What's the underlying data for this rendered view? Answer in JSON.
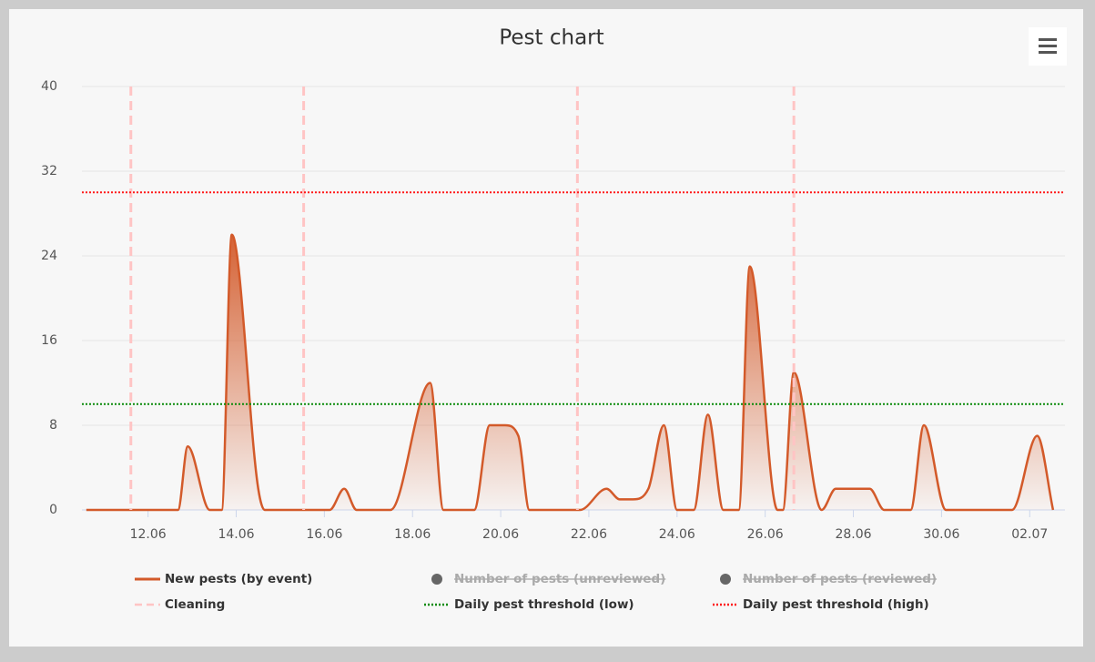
{
  "chart_data": {
    "type": "areaspline",
    "title": "Pest chart",
    "xlim": [
      10.5,
      32.8
    ],
    "xticks": [
      {
        "value": 12,
        "label": "12.06"
      },
      {
        "value": 14,
        "label": "14.06"
      },
      {
        "value": 16,
        "label": "16.06"
      },
      {
        "value": 18,
        "label": "18.06"
      },
      {
        "value": 20,
        "label": "20.06"
      },
      {
        "value": 22,
        "label": "22.06"
      },
      {
        "value": 24,
        "label": "24.06"
      },
      {
        "value": 26,
        "label": "26.06"
      },
      {
        "value": 28,
        "label": "28.06"
      },
      {
        "value": 30,
        "label": "30.06"
      },
      {
        "value": 32,
        "label": "02.07"
      }
    ],
    "ylim": [
      0,
      40
    ],
    "yticks": [
      0,
      8,
      16,
      24,
      32,
      40
    ],
    "grid": true,
    "series": [
      {
        "name": "New pests (by event)",
        "type": "areaspline",
        "color": "#d35a2a",
        "x": [
          10.6,
          12.68,
          12.9,
          13.4,
          13.67,
          13.9,
          14.5,
          14.65,
          16.12,
          16.45,
          16.73,
          17.5,
          18.4,
          18.7,
          19.4,
          19.75,
          20.1,
          20.4,
          20.65,
          21.8,
          22.4,
          22.7,
          23.0,
          23.35,
          23.7,
          24.0,
          24.38,
          24.7,
          25.05,
          25.4,
          25.65,
          26.28,
          26.4,
          26.65,
          27.28,
          27.6,
          28.37,
          28.7,
          29.3,
          29.6,
          30.1,
          31.6,
          32.17,
          32.53
        ],
        "values": [
          0,
          0,
          6,
          0,
          0,
          26,
          2,
          0,
          0,
          2,
          0,
          0,
          12,
          0,
          0,
          8,
          8,
          7,
          0,
          0,
          2,
          1,
          1,
          2,
          8,
          0,
          0,
          9,
          0,
          0,
          23,
          0,
          0,
          13,
          0,
          2,
          2,
          0,
          0,
          8,
          0,
          0,
          7,
          0
        ]
      },
      {
        "name": "Number of pests (unreviewed)",
        "type": "scatter",
        "color": "#666666",
        "visible": false
      },
      {
        "name": "Number of pests (reviewed)",
        "type": "scatter",
        "color": "#666666",
        "visible": false
      },
      {
        "name": "Cleaning",
        "type": "vline",
        "color": "#ffc4c4",
        "x": [
          11.61,
          15.53,
          21.74,
          26.65
        ]
      },
      {
        "name": "Daily pest threshold (low)",
        "type": "hline",
        "color": "#0a8a0a",
        "value": 10
      },
      {
        "name": "Daily pest threshold (high)",
        "type": "hline",
        "color": "#ff1a1a",
        "value": 30
      }
    ]
  }
}
